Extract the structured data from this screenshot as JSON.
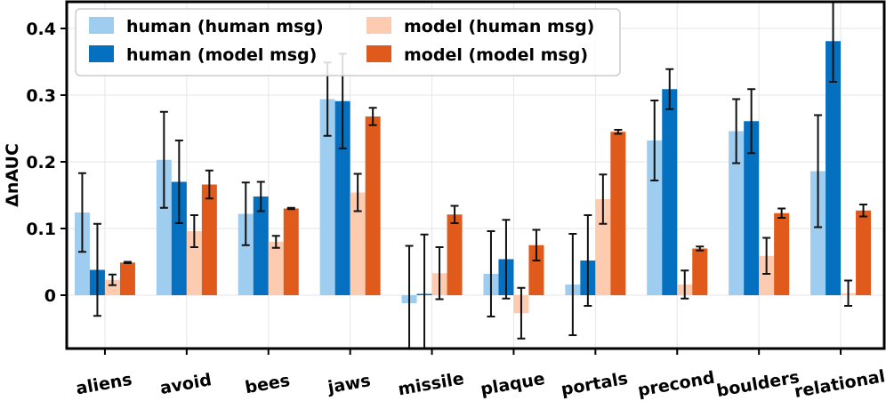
{
  "chart_data": {
    "type": "bar",
    "title": "",
    "xlabel": "",
    "ylabel": "ΔnAUC",
    "ylim": [
      -0.08,
      0.44
    ],
    "yticks": [
      0.0,
      0.1,
      0.2,
      0.3,
      0.4
    ],
    "ytick_labels": [
      "0",
      "0.1",
      "0.2",
      "0.3",
      "0.4"
    ],
    "grid": true,
    "legend_position": "top-left",
    "categories": [
      "aliens",
      "avoid",
      "bees",
      "jaws",
      "missile",
      "plaque",
      "portals",
      "precond",
      "boulders",
      "relational"
    ],
    "series": [
      {
        "name": "human (human msg)",
        "color": "#9fcdef",
        "values": [
          0.124,
          0.203,
          0.122,
          0.294,
          -0.012,
          0.032,
          0.016,
          0.232,
          0.246,
          0.186
        ],
        "errors": [
          0.059,
          0.072,
          0.047,
          0.055,
          0.086,
          0.064,
          0.076,
          0.06,
          0.048,
          0.084
        ]
      },
      {
        "name": "human (model msg)",
        "color": "#0570c0",
        "values": [
          0.038,
          0.17,
          0.148,
          0.291,
          0.002,
          0.054,
          0.052,
          0.309,
          0.261,
          0.381
        ],
        "errors": [
          0.069,
          0.062,
          0.022,
          0.071,
          0.089,
          0.059,
          0.068,
          0.03,
          0.048,
          0.061
        ]
      },
      {
        "name": "model (human msg)",
        "color": "#fdcbb0",
        "values": [
          0.023,
          0.096,
          0.08,
          0.154,
          0.033,
          -0.027,
          0.144,
          0.016,
          0.059,
          0.003
        ],
        "errors": [
          0.008,
          0.024,
          0.009,
          0.028,
          0.039,
          0.038,
          0.037,
          0.021,
          0.027,
          0.019
        ]
      },
      {
        "name": "model (model msg)",
        "color": "#e05a1b",
        "values": [
          0.049,
          0.166,
          0.13,
          0.268,
          0.121,
          0.075,
          0.245,
          0.07,
          0.123,
          0.127
        ],
        "errors": [
          0.001,
          0.021,
          0.001,
          0.013,
          0.013,
          0.023,
          0.003,
          0.003,
          0.007,
          0.009
        ]
      }
    ]
  }
}
